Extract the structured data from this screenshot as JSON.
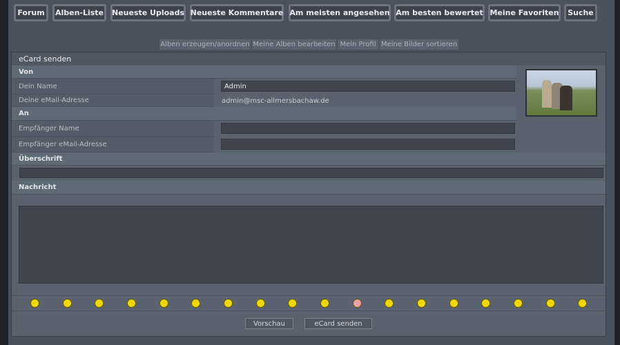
{
  "nav": [
    "Forum",
    "Alben-Liste",
    "Neueste Uploads",
    "Neueste Kommentare",
    "Am meisten angesehen",
    "Am besten bewertet",
    "Meine Favoriten",
    "Suche"
  ],
  "subnav": [
    "Alben erzeugen/anordnen",
    "Meine Alben bearbeiten",
    "Mein Profil",
    "Meine Bilder sortieren"
  ],
  "form": {
    "title": "eCard senden",
    "from_header": "Von",
    "name_label": "Dein Name",
    "name_value": "Admin",
    "email_label": "Deine eMail-Adresse",
    "email_value": "admin@msc-allmersbachaw.de",
    "to_header": "An",
    "recipient_name_label": "Empfänger Name",
    "recipient_name_value": "",
    "recipient_email_label": "Empfänger eMail-Adresse",
    "recipient_email_value": "",
    "subject_header": "Überschrift",
    "subject_value": "",
    "message_header": "Nachricht",
    "message_value": "",
    "smilies": [
      "grin",
      "tongue",
      "big-smile",
      "smile-teeth",
      "neutral",
      "sad",
      "frown",
      "cool",
      "surprised",
      "wink-smile",
      "embarrassed",
      "eek",
      "mad",
      "rolleyes",
      "wink",
      "idea",
      "exclamation",
      "question"
    ],
    "preview_button": "Vorschau",
    "send_button": "eCard senden"
  }
}
